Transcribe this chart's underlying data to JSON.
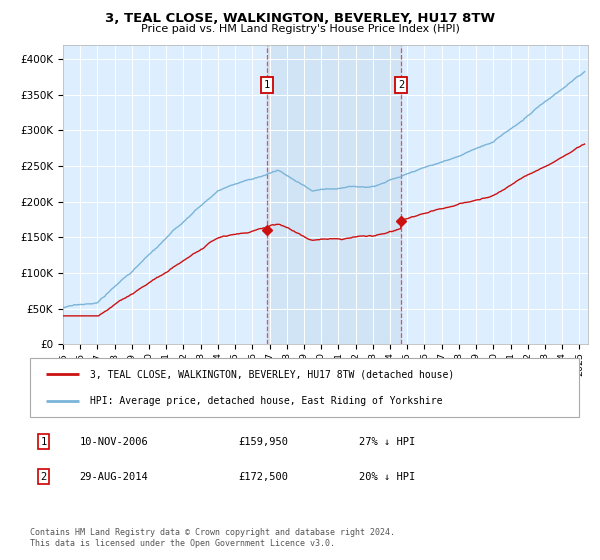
{
  "title": "3, TEAL CLOSE, WALKINGTON, BEVERLEY, HU17 8TW",
  "subtitle": "Price paid vs. HM Land Registry's House Price Index (HPI)",
  "background_color": "#ffffff",
  "plot_bg_color": "#ddeeff",
  "grid_color": "#ffffff",
  "ylim": [
    0,
    420000
  ],
  "yticks": [
    0,
    50000,
    100000,
    150000,
    200000,
    250000,
    300000,
    350000,
    400000
  ],
  "ytick_labels": [
    "£0",
    "£50K",
    "£100K",
    "£150K",
    "£200K",
    "£250K",
    "£300K",
    "£350K",
    "£400K"
  ],
  "sale1_date": 2006.87,
  "sale1_price": 159950,
  "sale2_date": 2014.66,
  "sale2_price": 172500,
  "hpi_color": "#7ab4d8",
  "price_color": "#cc1111",
  "vline_color": "#ee3333",
  "shade_color": "#c8dcf0",
  "legend_label_red": "3, TEAL CLOSE, WALKINGTON, BEVERLEY, HU17 8TW (detached house)",
  "legend_label_blue": "HPI: Average price, detached house, East Riding of Yorkshire",
  "footnote1": "Contains HM Land Registry data © Crown copyright and database right 2024.",
  "footnote2": "This data is licensed under the Open Government Licence v3.0.",
  "table_rows": [
    {
      "num": "1",
      "date": "10-NOV-2006",
      "price": "£159,950",
      "pct": "27% ↓ HPI"
    },
    {
      "num": "2",
      "date": "29-AUG-2014",
      "price": "£172,500",
      "pct": "20% ↓ HPI"
    }
  ]
}
